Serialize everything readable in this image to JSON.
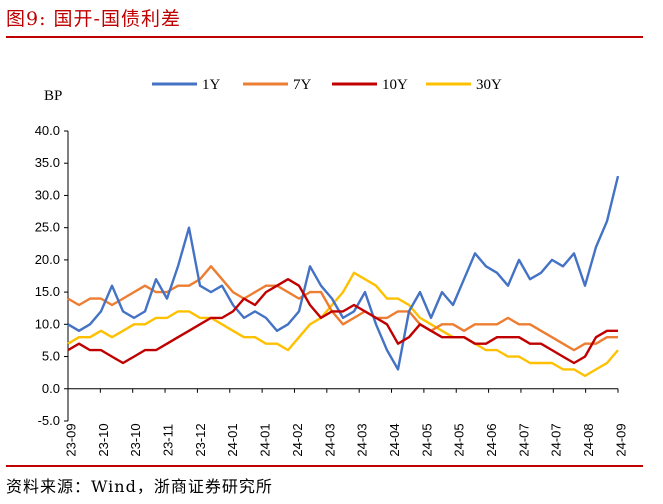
{
  "figure": {
    "title": "图9:   国开-国债利差",
    "source": "资料来源：Wind，浙商证券研究所"
  },
  "colors": {
    "accent": "#c00000",
    "series_1y": "#4472c4",
    "series_7y": "#ed7d31",
    "series_10y": "#c00000",
    "series_30y": "#ffc000"
  },
  "chart_data": {
    "type": "line",
    "title": "",
    "ylabel": "BP",
    "xlabel": "",
    "ylim": [
      -5,
      40
    ],
    "yticks": [
      "40.0",
      "35.0",
      "30.0",
      "25.0",
      "20.0",
      "15.0",
      "10.0",
      "5.0",
      "0.0",
      "-5.0"
    ],
    "xticks": [
      "23-09",
      "23-10",
      "23-10",
      "23-11",
      "23-12",
      "24-01",
      "24-01",
      "24-02",
      "24-03",
      "24-03",
      "24-04",
      "24-05",
      "24-05",
      "24-06",
      "24-07",
      "24-07",
      "24-08",
      "24-09"
    ],
    "legend_position": "top",
    "grid": false,
    "x": [
      0,
      0.02,
      0.04,
      0.06,
      0.08,
      0.1,
      0.12,
      0.14,
      0.16,
      0.18,
      0.2,
      0.22,
      0.24,
      0.26,
      0.28,
      0.3,
      0.32,
      0.34,
      0.36,
      0.38,
      0.4,
      0.42,
      0.44,
      0.46,
      0.48,
      0.5,
      0.52,
      0.54,
      0.56,
      0.58,
      0.6,
      0.62,
      0.64,
      0.66,
      0.68,
      0.7,
      0.72,
      0.74,
      0.76,
      0.78,
      0.8,
      0.82,
      0.84,
      0.86,
      0.88,
      0.9,
      0.92,
      0.94,
      0.96,
      0.98,
      1.0
    ],
    "x_note": "",
    "series": [
      {
        "name": "1Y",
        "color": "#4472c4",
        "values": [
          10,
          9,
          10,
          12,
          16,
          12,
          11,
          12,
          17,
          14,
          19,
          25,
          16,
          15,
          16,
          13,
          11,
          12,
          11,
          9,
          10,
          12,
          19,
          16,
          14,
          11,
          12,
          15,
          10,
          6,
          3,
          12,
          15,
          11,
          15,
          13,
          17,
          21,
          19,
          18,
          16,
          20,
          17,
          18,
          20,
          19,
          21,
          16,
          22,
          26,
          33
        ]
      },
      {
        "name": "7Y",
        "color": "#ed7d31",
        "values": [
          14,
          13,
          14,
          14,
          13,
          14,
          15,
          16,
          15,
          15,
          16,
          16,
          17,
          19,
          17,
          15,
          14,
          15,
          16,
          16,
          15,
          14,
          15,
          15,
          12,
          10,
          11,
          12,
          11,
          11,
          12,
          12,
          10,
          9,
          10,
          10,
          9,
          10,
          10,
          10,
          11,
          10,
          10,
          9,
          8,
          7,
          6,
          7,
          7,
          8,
          8
        ]
      },
      {
        "name": "10Y",
        "color": "#c00000",
        "values": [
          6,
          7,
          6,
          6,
          5,
          4,
          5,
          6,
          6,
          7,
          8,
          9,
          10,
          11,
          11,
          12,
          14,
          13,
          15,
          16,
          17,
          16,
          13,
          11,
          12,
          12,
          13,
          12,
          11,
          10,
          7,
          8,
          10,
          9,
          8,
          8,
          8,
          7,
          7,
          8,
          8,
          8,
          7,
          7,
          6,
          5,
          4,
          5,
          8,
          9,
          9
        ]
      },
      {
        "name": "30Y",
        "color": "#ffc000",
        "values": [
          7,
          8,
          8,
          9,
          8,
          9,
          10,
          10,
          11,
          11,
          12,
          12,
          11,
          11,
          10,
          9,
          8,
          8,
          7,
          7,
          6,
          8,
          10,
          11,
          13,
          15,
          18,
          17,
          16,
          14,
          14,
          13,
          11,
          10,
          9,
          8,
          8,
          7,
          6,
          6,
          5,
          5,
          4,
          4,
          4,
          3,
          3,
          2,
          3,
          4,
          6
        ]
      }
    ]
  }
}
